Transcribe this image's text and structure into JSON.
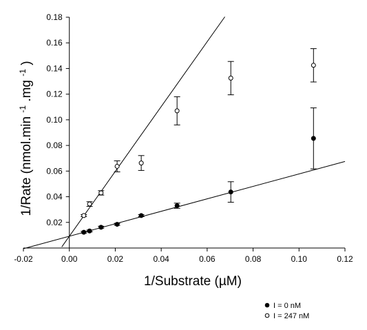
{
  "chart_data": {
    "type": "scatter",
    "xlabel": "1/Substrate (µM)",
    "ylabel": {
      "main": "1/Rate (nmol.min",
      "sup1": "-1",
      "middle": ".mg",
      "sup2": "-1",
      "end": ")"
    },
    "xlim": [
      -0.02,
      0.12
    ],
    "ylim": [
      0.0,
      0.18
    ],
    "xticks": [
      -0.02,
      0.0,
      0.02,
      0.04,
      0.06,
      0.08,
      0.1,
      0.12
    ],
    "xtick_labels": [
      "-0.02",
      "0.00",
      "0.02",
      "0.04",
      "0.06",
      "0.08",
      "0.10",
      "0.12"
    ],
    "yticks": [
      0.02,
      0.04,
      0.06,
      0.08,
      0.1,
      0.12,
      0.14,
      0.16,
      0.18
    ],
    "ytick_labels": [
      "0.02",
      "0.04",
      "0.06",
      "0.08",
      "0.10",
      "0.12",
      "0.14",
      "0.16",
      "0.18"
    ],
    "grid": false,
    "legend_placement": "bottom-right",
    "series": [
      {
        "name": "I = 0 nM",
        "marker": "filled-circle",
        "color": "#000000",
        "points": [
          {
            "x": 0.0063,
            "y": 0.0123,
            "err": 0.0007
          },
          {
            "x": 0.0088,
            "y": 0.0133,
            "err": 0.0007
          },
          {
            "x": 0.0138,
            "y": 0.0162,
            "err": 0.0008
          },
          {
            "x": 0.0208,
            "y": 0.0185,
            "err": 0.0008
          },
          {
            "x": 0.0313,
            "y": 0.0253,
            "err": 0.0008
          },
          {
            "x": 0.0469,
            "y": 0.033,
            "err": 0.002
          },
          {
            "x": 0.0703,
            "y": 0.0437,
            "err": 0.008
          },
          {
            "x": 0.1063,
            "y": 0.0855,
            "err": 0.0238
          }
        ],
        "fit_line": {
          "x": [
            -0.02,
            0.12
          ],
          "y": 0.0092,
          "slope": 0.4858
        }
      },
      {
        "name": "I = 247 nM",
        "marker": "open-circle",
        "color": "#000000",
        "points": [
          {
            "x": 0.0063,
            "y": 0.0253,
            "err": 0.0008
          },
          {
            "x": 0.0088,
            "y": 0.0343,
            "err": 0.0018
          },
          {
            "x": 0.0138,
            "y": 0.043,
            "err": 0.0017
          },
          {
            "x": 0.0208,
            "y": 0.0637,
            "err": 0.0043
          },
          {
            "x": 0.0313,
            "y": 0.0663,
            "err": 0.0058
          },
          {
            "x": 0.0469,
            "y": 0.107,
            "err": 0.011
          },
          {
            "x": 0.0703,
            "y": 0.1325,
            "err": 0.013
          },
          {
            "x": 0.1063,
            "y": 0.1425,
            "err": 0.013
          }
        ],
        "fit_line": {
          "x": [
            -0.0033,
            0.0677
          ],
          "y": 0.0092,
          "slope": 2.528
        }
      }
    ]
  },
  "colors": {
    "axis": "#000000",
    "marker": "#000000",
    "background": "#ffffff"
  }
}
